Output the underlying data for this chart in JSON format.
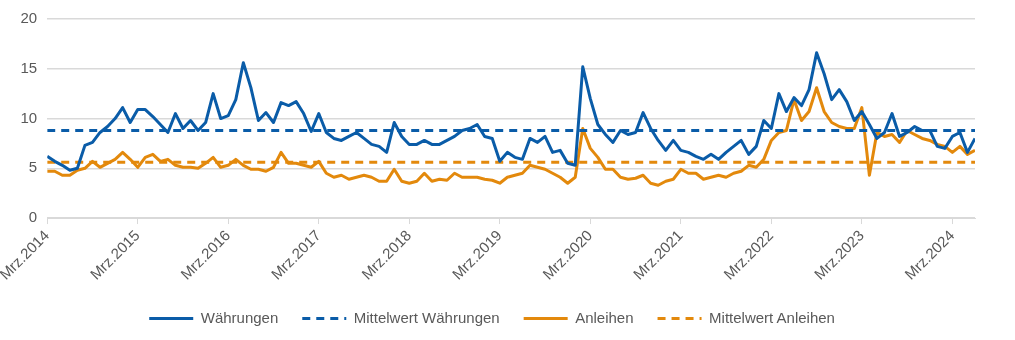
{
  "chart_data": {
    "type": "line",
    "x": [
      "2014-03",
      "2014-04",
      "2014-05",
      "2014-06",
      "2014-07",
      "2014-08",
      "2014-09",
      "2014-10",
      "2014-11",
      "2014-12",
      "2015-01",
      "2015-02",
      "2015-03",
      "2015-04",
      "2015-05",
      "2015-06",
      "2015-07",
      "2015-08",
      "2015-09",
      "2015-10",
      "2015-11",
      "2015-12",
      "2016-01",
      "2016-02",
      "2016-03",
      "2016-04",
      "2016-05",
      "2016-06",
      "2016-07",
      "2016-08",
      "2016-09",
      "2016-10",
      "2016-11",
      "2016-12",
      "2017-01",
      "2017-02",
      "2017-03",
      "2017-04",
      "2017-05",
      "2017-06",
      "2017-07",
      "2017-08",
      "2017-09",
      "2017-10",
      "2017-11",
      "2017-12",
      "2018-01",
      "2018-02",
      "2018-03",
      "2018-04",
      "2018-05",
      "2018-06",
      "2018-07",
      "2018-08",
      "2018-09",
      "2018-10",
      "2018-11",
      "2018-12",
      "2019-01",
      "2019-02",
      "2019-03",
      "2019-04",
      "2019-05",
      "2019-06",
      "2019-07",
      "2019-08",
      "2019-09",
      "2019-10",
      "2019-11",
      "2019-12",
      "2020-01",
      "2020-02",
      "2020-03",
      "2020-04",
      "2020-05",
      "2020-06",
      "2020-07",
      "2020-08",
      "2020-09",
      "2020-10",
      "2020-11",
      "2020-12",
      "2021-01",
      "2021-02",
      "2021-03",
      "2021-04",
      "2021-05",
      "2021-06",
      "2021-07",
      "2021-08",
      "2021-09",
      "2021-10",
      "2021-11",
      "2021-12",
      "2022-01",
      "2022-02",
      "2022-03",
      "2022-04",
      "2022-05",
      "2022-06",
      "2022-07",
      "2022-08",
      "2022-09",
      "2022-10",
      "2022-11",
      "2022-12",
      "2023-01",
      "2023-02",
      "2023-03",
      "2023-04",
      "2023-05",
      "2023-06",
      "2023-07",
      "2023-08",
      "2023-09",
      "2023-10",
      "2023-11",
      "2023-12",
      "2024-01",
      "2024-02",
      "2024-03",
      "2024-04",
      "2024-05",
      "2024-06"
    ],
    "series": [
      {
        "name": "Währungen",
        "color": "#0a5ca8",
        "values": [
          6.2,
          5.7,
          5.3,
          4.8,
          5.0,
          7.3,
          7.6,
          8.6,
          9.2,
          10.0,
          11.1,
          9.6,
          10.9,
          10.9,
          10.2,
          9.4,
          8.6,
          10.5,
          9.0,
          9.8,
          8.8,
          9.6,
          12.5,
          10.0,
          10.3,
          11.9,
          15.6,
          13.1,
          9.8,
          10.6,
          9.6,
          11.6,
          11.3,
          11.7,
          10.5,
          8.7,
          10.5,
          8.6,
          8.0,
          7.8,
          8.2,
          8.6,
          8.0,
          7.4,
          7.2,
          6.6,
          9.6,
          8.2,
          7.4,
          7.4,
          7.8,
          7.4,
          7.4,
          7.8,
          8.2,
          8.8,
          9.0,
          9.4,
          8.2,
          8.0,
          5.7,
          6.6,
          6.1,
          5.9,
          8.0,
          7.6,
          8.2,
          6.6,
          6.8,
          5.5,
          5.3,
          15.2,
          12.0,
          9.4,
          8.4,
          7.6,
          8.8,
          8.4,
          8.6,
          10.6,
          9.0,
          7.8,
          6.8,
          7.8,
          6.8,
          6.6,
          6.2,
          5.9,
          6.4,
          5.9,
          6.6,
          7.2,
          7.8,
          6.4,
          7.2,
          9.8,
          9.0,
          12.5,
          10.7,
          12.1,
          11.3,
          12.9,
          16.6,
          14.5,
          11.9,
          12.9,
          11.7,
          9.8,
          10.7,
          9.4,
          8.0,
          8.6,
          10.5,
          8.2,
          8.6,
          9.2,
          8.8,
          8.8,
          7.2,
          7.0,
          8.2,
          8.6,
          6.6,
          8.0
        ]
      },
      {
        "name": "Anleihen",
        "color": "#e3890c",
        "values": [
          4.7,
          4.7,
          4.3,
          4.3,
          4.8,
          5.0,
          5.7,
          5.1,
          5.5,
          5.9,
          6.6,
          5.9,
          5.1,
          6.1,
          6.4,
          5.7,
          5.9,
          5.3,
          5.1,
          5.1,
          5.0,
          5.5,
          6.1,
          5.1,
          5.3,
          5.9,
          5.3,
          4.9,
          4.9,
          4.7,
          5.1,
          6.6,
          5.5,
          5.5,
          5.3,
          5.1,
          5.7,
          4.5,
          4.1,
          4.3,
          3.9,
          4.1,
          4.3,
          4.1,
          3.7,
          3.7,
          4.9,
          3.7,
          3.5,
          3.7,
          4.5,
          3.7,
          3.9,
          3.8,
          4.5,
          4.1,
          4.1,
          4.1,
          3.9,
          3.8,
          3.5,
          4.1,
          4.3,
          4.5,
          5.3,
          5.1,
          4.9,
          4.5,
          4.1,
          3.5,
          4.1,
          9.0,
          7.0,
          6.1,
          4.9,
          4.9,
          4.1,
          3.9,
          4.0,
          4.3,
          3.5,
          3.3,
          3.7,
          3.9,
          4.9,
          4.5,
          4.5,
          3.9,
          4.1,
          4.3,
          4.1,
          4.5,
          4.7,
          5.3,
          5.1,
          5.9,
          7.8,
          8.6,
          8.8,
          11.9,
          9.8,
          10.7,
          13.1,
          10.7,
          9.6,
          9.2,
          9.0,
          9.0,
          11.1,
          4.3,
          8.6,
          8.2,
          8.4,
          7.6,
          8.8,
          8.4,
          8.0,
          7.8,
          7.4,
          7.2,
          6.6,
          7.2,
          6.4,
          6.8
        ]
      }
    ],
    "ref_lines": [
      {
        "axis": "y",
        "value": 8.8,
        "label": "Mittelwert Währungen",
        "color": "#0a5ca8",
        "line_style": "dashed"
      },
      {
        "axis": "y",
        "value": 5.6,
        "label": "Mittelwert Anleihen",
        "color": "#e3890c",
        "line_style": "dashed"
      }
    ],
    "line_style": "solid",
    "xlim": [
      "2014-03",
      "2024-06"
    ],
    "xticks": [
      {
        "value": "2014-03",
        "label": "Mrz.2014"
      },
      {
        "value": "2015-03",
        "label": "Mrz.2015"
      },
      {
        "value": "2016-03",
        "label": "Mrz.2016"
      },
      {
        "value": "2017-03",
        "label": "Mrz.2017"
      },
      {
        "value": "2018-03",
        "label": "Mrz.2018"
      },
      {
        "value": "2019-03",
        "label": "Mrz.2019"
      },
      {
        "value": "2020-03",
        "label": "Mrz.2020"
      },
      {
        "value": "2021-03",
        "label": "Mrz.2021"
      },
      {
        "value": "2022-03",
        "label": "Mrz.2022"
      },
      {
        "value": "2023-03",
        "label": "Mrz.2023"
      },
      {
        "value": "2024-03",
        "label": "Mrz.2024"
      }
    ],
    "ylim": [
      0,
      20
    ],
    "yticks": [
      0,
      5,
      10,
      15,
      20
    ],
    "grid": "y",
    "legend": "bottom"
  }
}
